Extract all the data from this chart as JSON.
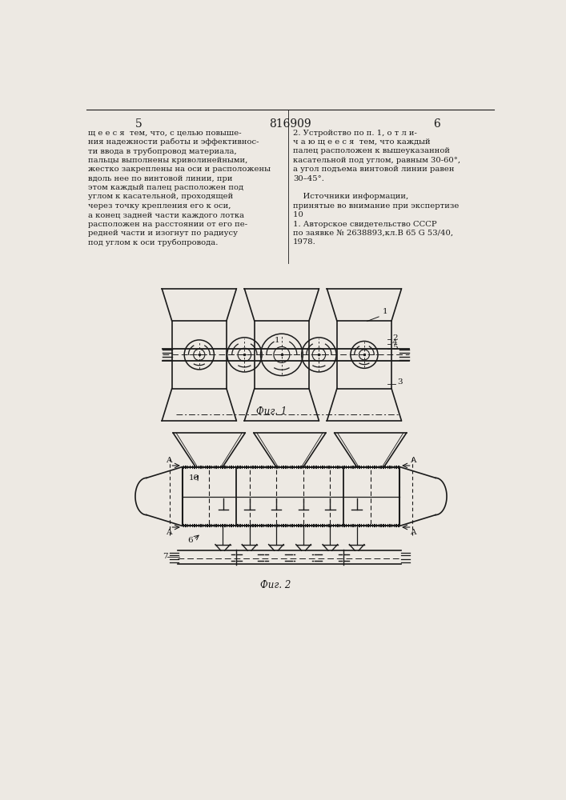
{
  "bg_color": "#ede9e3",
  "line_color": "#1a1a1a",
  "text_color": "#1a1a1a",
  "page_header": {
    "left_num": "5",
    "center_num": "816909",
    "right_num": "6"
  },
  "left_col_lines": [
    "щ е е с я  тем, что, с целью повыше-",
    "ния надежности работы и эффективнос-",
    "ти ввода в трубопровод материала,",
    "пальцы выполнены криволинейными,",
    "жестко закреплены на оси и расположены",
    "вдоль нее по винтовой линии, при",
    "этом каждый палец расположен под",
    "углом к касательной, проходящей",
    "через точку крепления его к оси,",
    "а конец задней части каждого лотка",
    "расположен на расстоянии от его пе-",
    "редней части и изогнут по радиусу",
    "под углом к оси трубопровода."
  ],
  "right_col_lines": [
    "2. Устройство по п. 1, о т л и-",
    "ч а ю щ е е с я  тем, что каждый",
    "палец расположен к вышеуказанной",
    "касательной под углом, равным 30-60°,",
    "а угол подъема винтовой линии равен",
    "30–45°.",
    "",
    "    Источники информации,",
    "принятые во внимание при экспертизе",
    "",
    "1. Авторское свидетельство СССР",
    "по заявке № 2638893,кл.В 65 G 53/40,",
    "1978."
  ],
  "fig1_caption": "Фиг. 1",
  "fig2_caption": "Фиг. 2"
}
